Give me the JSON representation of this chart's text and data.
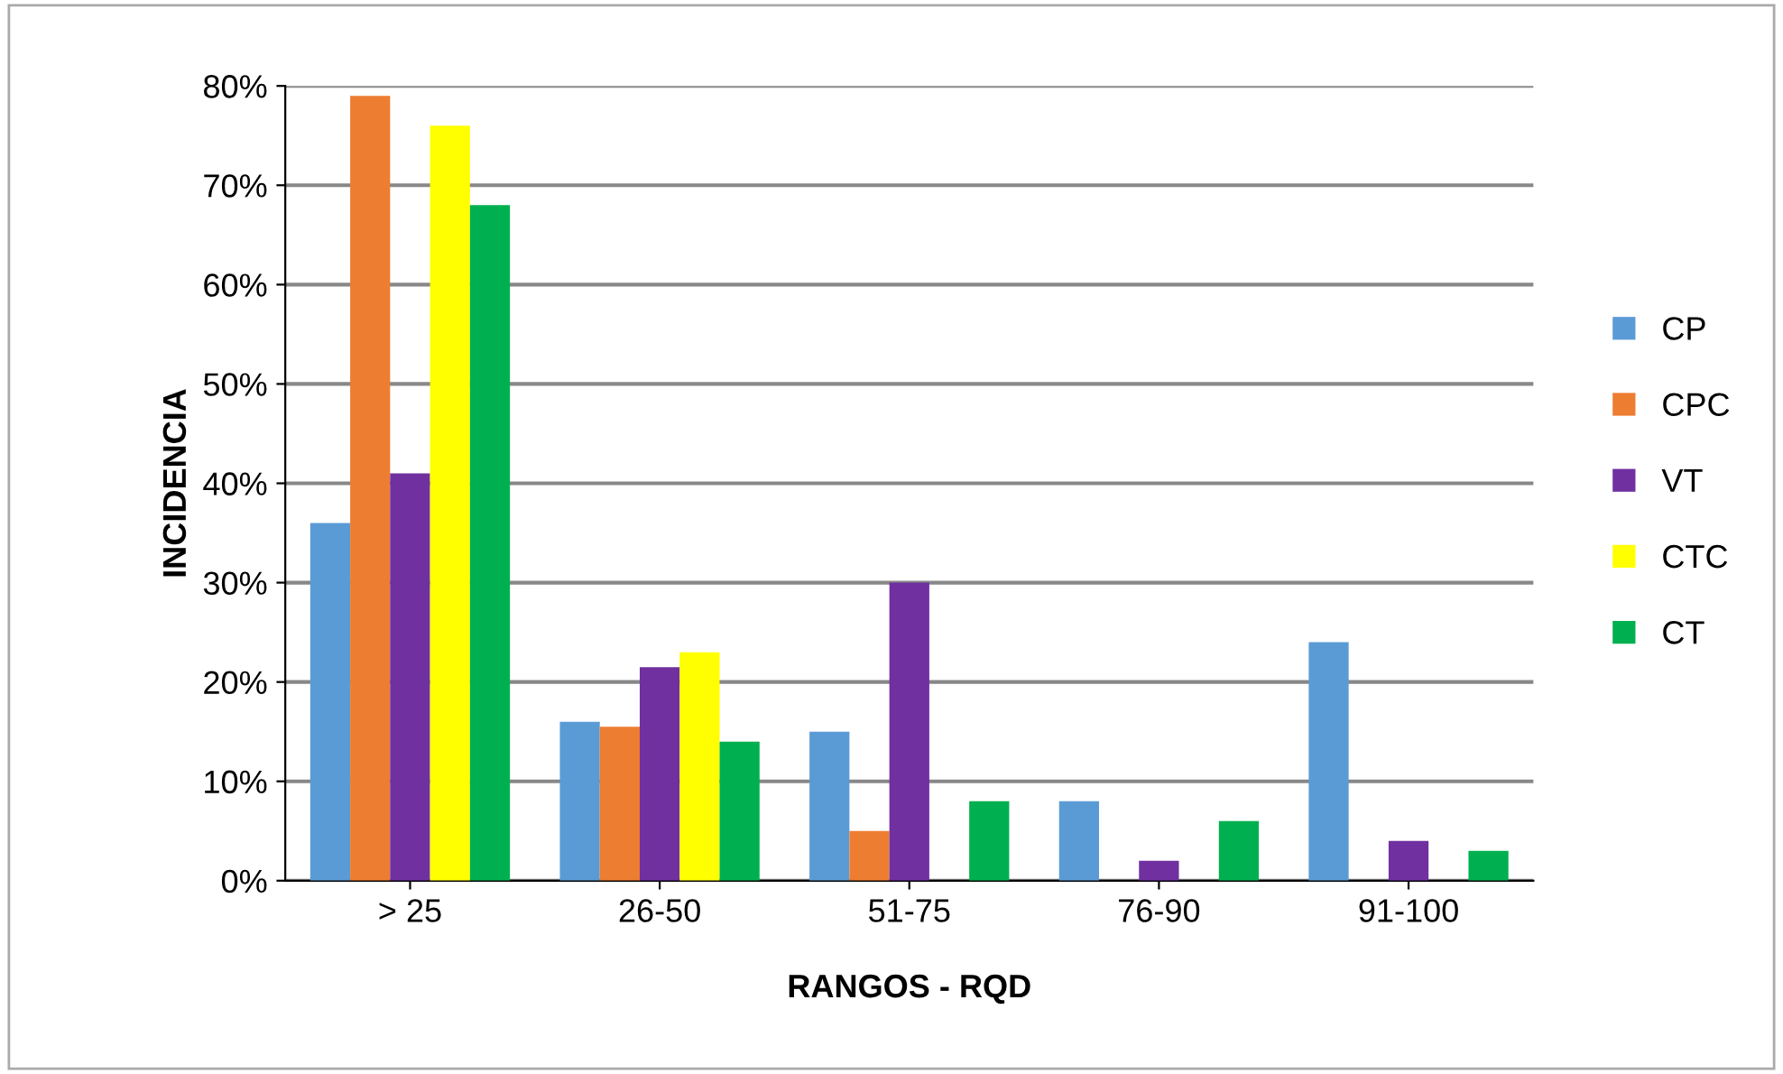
{
  "chart_data": {
    "type": "bar",
    "xlabel": "RANGOS - RQD",
    "ylabel": "INCIDENCIA",
    "categories": [
      "> 25",
      "26-50",
      "51-75",
      "76-90",
      "91-100"
    ],
    "series": [
      {
        "name": "CP",
        "color": "#5b9bd5",
        "values": [
          36,
          16,
          15,
          8,
          24
        ]
      },
      {
        "name": "CPC",
        "color": "#ed7d31",
        "values": [
          79,
          15.5,
          5,
          0,
          0
        ]
      },
      {
        "name": "VT",
        "color": "#7030a0",
        "values": [
          41,
          21.5,
          30,
          2,
          4
        ]
      },
      {
        "name": "CTC",
        "color": "#ffff00",
        "values": [
          76,
          23,
          0,
          0,
          0
        ]
      },
      {
        "name": "CT",
        "color": "#00b050",
        "values": [
          68,
          14,
          8,
          6,
          3
        ]
      }
    ],
    "ylim": [
      0,
      80
    ],
    "yticks": [
      {
        "value": 0,
        "label": "0%"
      },
      {
        "value": 10,
        "label": "10%"
      },
      {
        "value": 20,
        "label": "20%"
      },
      {
        "value": 30,
        "label": "30%"
      },
      {
        "value": 40,
        "label": "40%"
      },
      {
        "value": 50,
        "label": "50%"
      },
      {
        "value": 60,
        "label": "60%"
      },
      {
        "value": 70,
        "label": "70%"
      },
      {
        "value": 80,
        "label": "80%"
      }
    ],
    "grid": "y",
    "legend": "right"
  }
}
